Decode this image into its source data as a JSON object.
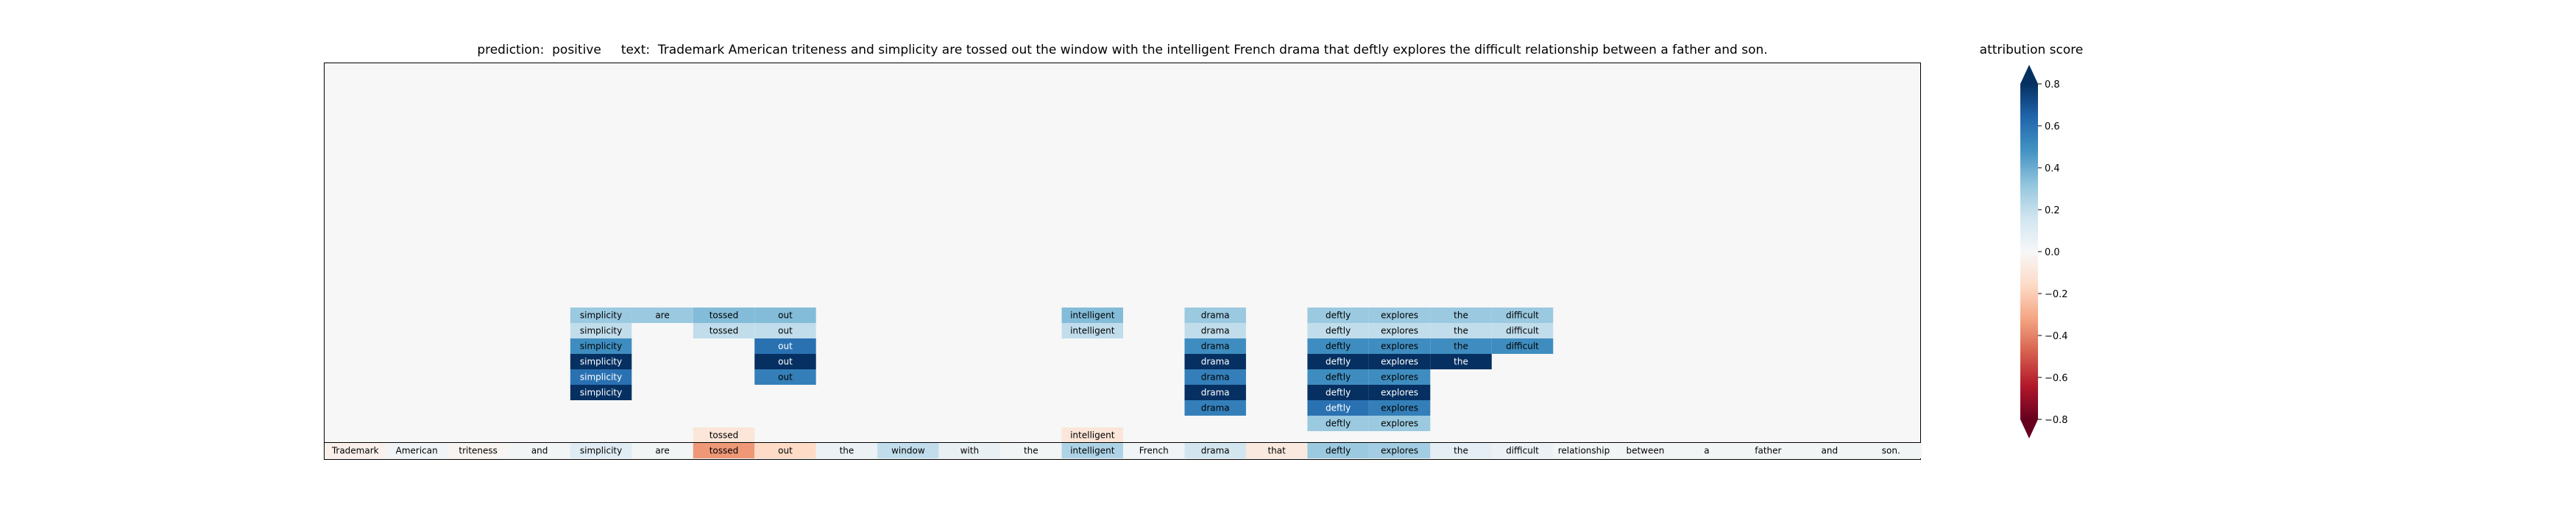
{
  "header": {
    "title": "prediction:  positive     text:  Trademark American triteness and simplicity are tossed out the window with the intelligent French drama that deftly explores the difficult relationship between a father and son."
  },
  "colorbar": {
    "title": "attribution score",
    "vmin": -0.8,
    "vmax": 0.8,
    "ticks": [
      0.8,
      0.6,
      0.4,
      0.2,
      0.0,
      -0.2,
      -0.4,
      -0.6,
      -0.8
    ],
    "tick_labels": [
      "0.8",
      "0.6",
      "0.4",
      "0.2",
      "0.0",
      "−0.2",
      "−0.4",
      "−0.6",
      "−0.8"
    ]
  },
  "chart_data": {
    "type": "heatmap",
    "tokens": [
      "Trademark",
      "American",
      "triteness",
      "and",
      "simplicity",
      "are",
      "tossed",
      "out",
      "the",
      "window",
      "with",
      "the",
      "intelligent",
      "French",
      "drama",
      "that",
      "deftly",
      "explores",
      "the",
      "difficult",
      "relationship",
      "between",
      "a",
      "father",
      "and",
      "son."
    ],
    "baseline_scores": [
      -0.04,
      0.03,
      -0.02,
      0.02,
      0.1,
      0.02,
      -0.35,
      -0.16,
      0.05,
      0.2,
      0.06,
      0.02,
      0.25,
      0.03,
      0.15,
      -0.08,
      0.3,
      0.28,
      0.08,
      0.05,
      0.02,
      0.02,
      0.02,
      0.02,
      0.02,
      0.02
    ],
    "lower_row": [
      {
        "token_index": 6,
        "score": -0.1
      },
      {
        "token_index": 12,
        "score": -0.1
      }
    ],
    "stacks": [
      {
        "token_index": 4,
        "scores": [
          0.3,
          0.2,
          0.5,
          0.95,
          0.6,
          0.95
        ]
      },
      {
        "token_index": 5,
        "scores": [
          0.3
        ]
      },
      {
        "token_index": 6,
        "scores": [
          0.35,
          0.2
        ]
      },
      {
        "token_index": 7,
        "scores": [
          0.35,
          0.2,
          0.6,
          0.95,
          0.55
        ]
      },
      {
        "token_index": 12,
        "scores": [
          0.35,
          0.2
        ]
      },
      {
        "token_index": 14,
        "scores": [
          0.3,
          0.2,
          0.5,
          0.95,
          0.55,
          0.95,
          0.55
        ]
      },
      {
        "token_index": 16,
        "scores": [
          0.3,
          0.2,
          0.5,
          0.95,
          0.5,
          0.95,
          0.6,
          0.3
        ]
      },
      {
        "token_index": 17,
        "scores": [
          0.3,
          0.2,
          0.5,
          0.95,
          0.5,
          0.95,
          0.55,
          0.3
        ]
      },
      {
        "token_index": 18,
        "scores": [
          0.3,
          0.2,
          0.5,
          0.95
        ]
      },
      {
        "token_index": 19,
        "scores": [
          0.3,
          0.2,
          0.5
        ]
      }
    ],
    "colormap": "RdBu"
  }
}
